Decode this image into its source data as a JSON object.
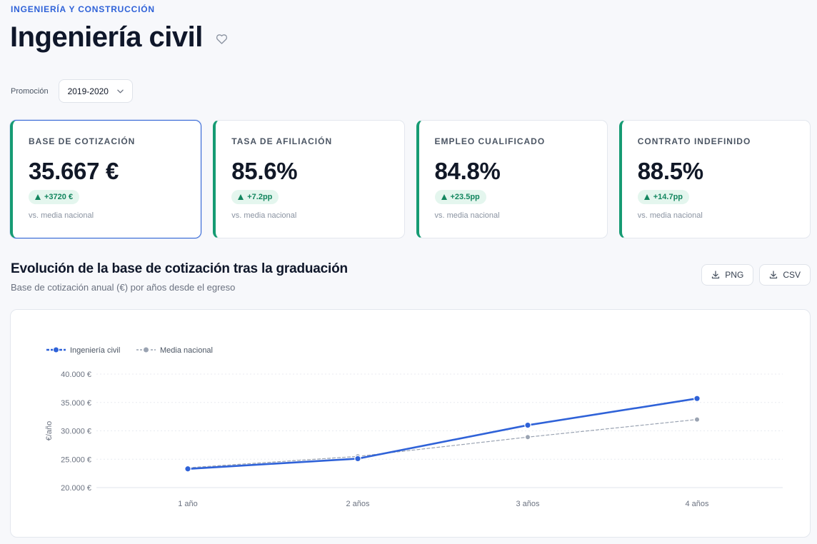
{
  "header": {
    "category": "INGENIERÍA Y CONSTRUCCIÓN",
    "title": "Ingeniería civil",
    "favorite_icon": "heart-outline-icon"
  },
  "filter": {
    "label": "Promoción",
    "selected": "2019-2020"
  },
  "kpis": [
    {
      "label": "BASE DE COTIZACIÓN",
      "value": "35.667 €",
      "delta": "+3720 €",
      "note": "vs. media nacional"
    },
    {
      "label": "TASA DE AFILIACIÓN",
      "value": "85.6%",
      "delta": "+7.2pp",
      "note": "vs. media nacional"
    },
    {
      "label": "EMPLEO CUALIFICADO",
      "value": "84.8%",
      "delta": "+23.5pp",
      "note": "vs. media nacional"
    },
    {
      "label": "CONTRATO INDEFINIDO",
      "value": "88.5%",
      "delta": "+14.7pp",
      "note": "vs. media nacional"
    }
  ],
  "section": {
    "title": "Evolución de la base de cotización tras la graduación",
    "subtitle": "Base de cotización anual (€) por años desde el egreso"
  },
  "export": {
    "png_label": "PNG",
    "csv_label": "CSV"
  },
  "colors": {
    "primary": "#2f62d8",
    "national": "#9aa3b2",
    "positive": "#13865f",
    "accent_border": "#169b73"
  },
  "chart_data": {
    "type": "line",
    "title": "Evolución de la base de cotización tras la graduación",
    "xlabel": "",
    "ylabel": "€/año",
    "categories": [
      "1 año",
      "2 años",
      "3 años",
      "4 años"
    ],
    "ylim": [
      20000,
      40000
    ],
    "yticks": [
      20000,
      25000,
      30000,
      35000,
      40000
    ],
    "ytick_labels": [
      "20.000 €",
      "25.000 €",
      "30.000 €",
      "35.000 €",
      "40.000 €"
    ],
    "legend_position": "top-left",
    "series": [
      {
        "name": "Ingeniería civil",
        "values": [
          23300,
          25100,
          31000,
          35700
        ],
        "color": "#2f62d8",
        "style": "solid"
      },
      {
        "name": "Media nacional",
        "values": [
          23500,
          25500,
          28900,
          32000
        ],
        "color": "#9aa3b2",
        "style": "dashed"
      }
    ]
  }
}
